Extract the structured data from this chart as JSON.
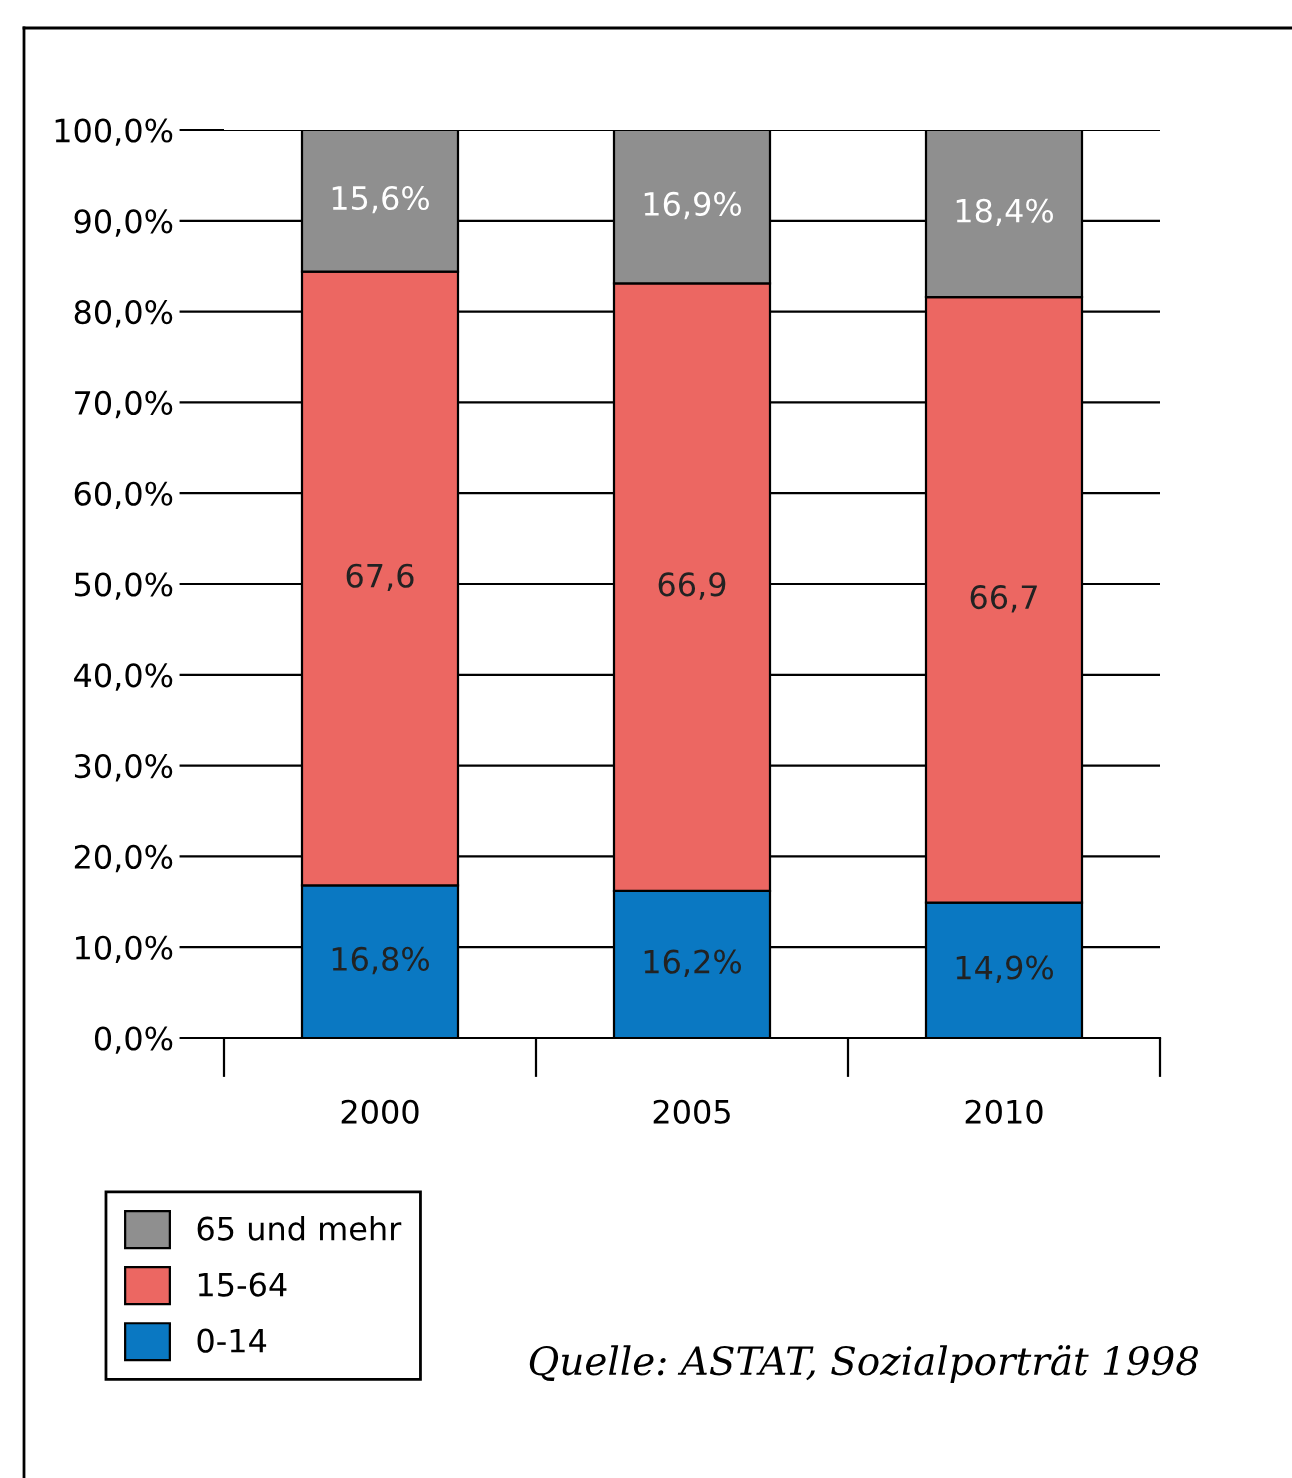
{
  "chart_data": {
    "type": "bar",
    "stacked": true,
    "categories": [
      "2000",
      "2005",
      "2010"
    ],
    "series": [
      {
        "name": "0-14",
        "color": "#0a78c2",
        "values": [
          16.8,
          16.2,
          14.9
        ],
        "value_labels": [
          "16,8%",
          "16,2%",
          "14,9%"
        ]
      },
      {
        "name": "15-64",
        "color": "#ec6762",
        "values": [
          67.6,
          66.9,
          66.7
        ],
        "value_labels": [
          "67,6",
          "66,9",
          "66,7"
        ]
      },
      {
        "name": "65 und mehr",
        "color": "#8f8f8f",
        "values": [
          15.6,
          16.9,
          18.4
        ],
        "value_labels": [
          "15,6%",
          "16,9%",
          "18,4%"
        ]
      }
    ],
    "ylim": [
      0,
      100
    ],
    "yticks": [
      {
        "value": 0,
        "label": "0,0%"
      },
      {
        "value": 10,
        "label": "10,0%"
      },
      {
        "value": 20,
        "label": "20,0%"
      },
      {
        "value": 30,
        "label": "30,0%"
      },
      {
        "value": 40,
        "label": "40,0%"
      },
      {
        "value": 50,
        "label": "50,0%"
      },
      {
        "value": 60,
        "label": "60,0%"
      },
      {
        "value": 70,
        "label": "70,0%"
      },
      {
        "value": 80,
        "label": "80,0%"
      },
      {
        "value": 90,
        "label": "90,0%"
      },
      {
        "value": 100,
        "label": "100,0%"
      }
    ],
    "grid": "y",
    "legend": "bottom left",
    "annotations": [
      "Quelle: ASTAT, Sozialporträt 1998"
    ]
  }
}
